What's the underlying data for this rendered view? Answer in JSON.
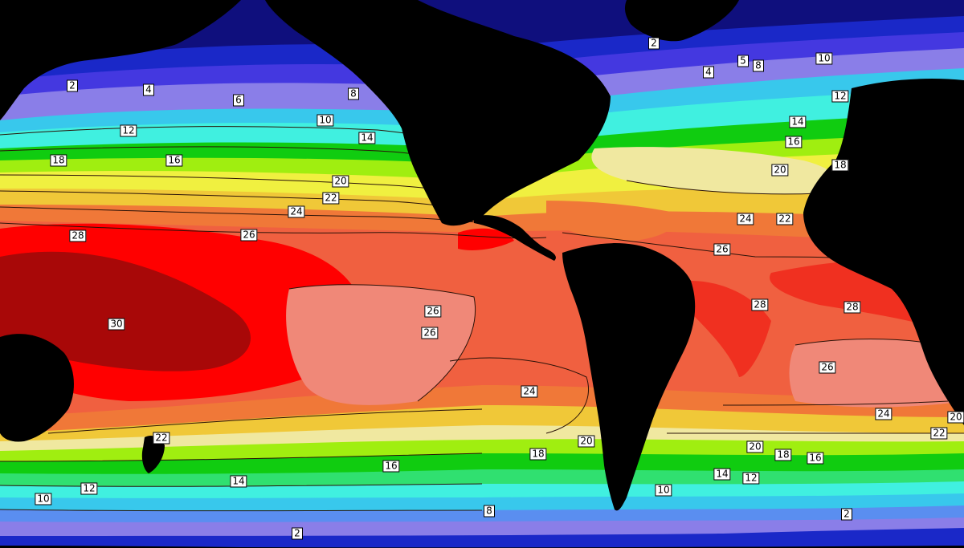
{
  "palette": {
    "0": "#0f0f7d",
    "2": "#1a28c8",
    "4": "#4438e0",
    "5": "#6a5ae6",
    "6": "#8a7ee8",
    "8": "#5a8ef0",
    "10": "#38c8ec",
    "12": "#40f0e0",
    "14": "#30e070",
    "16": "#10cc10",
    "18": "#a0ee10",
    "20": "#f0f040",
    "21": "#f0e8a0",
    "22": "#f0c838",
    "23": "#f0a020",
    "24": "#f07838",
    "25": "#f08878",
    "26": "#f06040",
    "27": "#f03020",
    "28": "#ff0000",
    "29": "#d01010",
    "30": "#a80808",
    "land": "#000000",
    "contour_line": "#2a1208",
    "label_bg": "#ffffff",
    "label_text": "#000000"
  },
  "labels": [
    "2",
    "4",
    "6",
    "8",
    "10",
    "12",
    "14",
    "16",
    "18",
    "16",
    "20",
    "22",
    "24",
    "26",
    "28",
    "30",
    "26",
    "26",
    "24",
    "20",
    "18",
    "16",
    "14",
    "12",
    "10",
    "8",
    "2",
    "22",
    "2",
    "4",
    "5",
    "8",
    "10",
    "12",
    "14",
    "16",
    "20",
    "18",
    "24",
    "22",
    "26",
    "28",
    "28",
    "26",
    "24",
    "22",
    "20",
    "18",
    "16",
    "14",
    "12",
    "10",
    "2",
    "20"
  ]
}
